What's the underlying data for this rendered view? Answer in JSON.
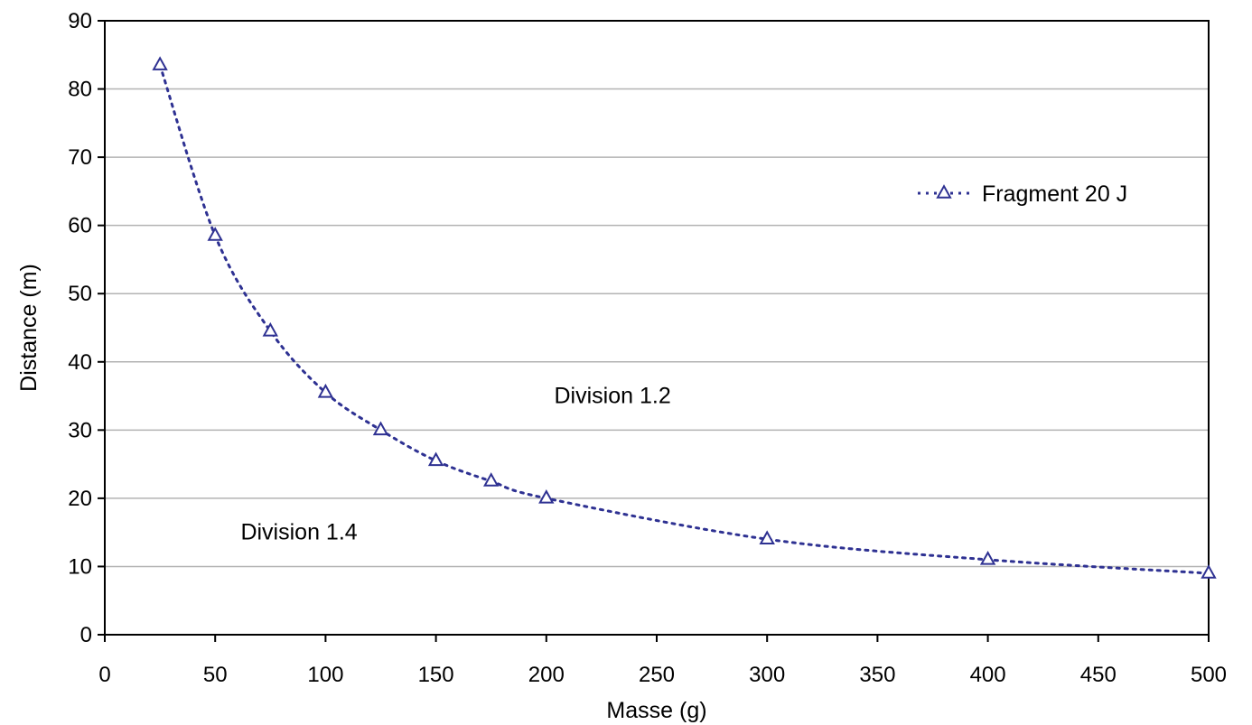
{
  "chart_data": {
    "type": "line",
    "title": "",
    "xlabel": "Masse (g)",
    "ylabel": "Distance (m)",
    "xlim": [
      0,
      500
    ],
    "ylim": [
      0,
      90
    ],
    "x_ticks": [
      0,
      50,
      100,
      150,
      200,
      250,
      300,
      350,
      400,
      450,
      500
    ],
    "y_ticks": [
      0,
      10,
      20,
      30,
      40,
      50,
      60,
      70,
      80,
      90
    ],
    "grid": "horizontal",
    "legend_position": "top-right",
    "series": [
      {
        "name": "Fragment 20 J",
        "color": "#2e3192",
        "marker": "triangle-open",
        "line_style": "dotted",
        "x": [
          25,
          50,
          75,
          100,
          125,
          150,
          175,
          200,
          300,
          400,
          500
        ],
        "y": [
          83.5,
          58.5,
          44.5,
          35.5,
          30.0,
          25.5,
          22.5,
          20.0,
          14.0,
          11.0,
          9.0
        ]
      }
    ],
    "annotations": [
      {
        "text": "Division 1.2",
        "x": 230,
        "y": 35
      },
      {
        "text": "Division 1.4",
        "x": 88,
        "y": 15
      }
    ]
  }
}
